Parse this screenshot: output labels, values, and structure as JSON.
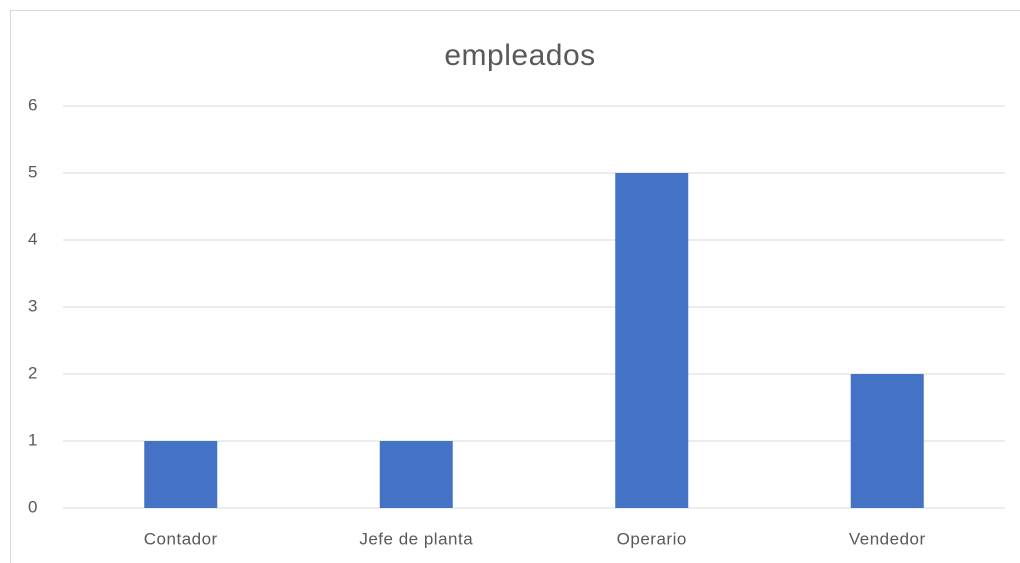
{
  "chart_data": {
    "type": "bar",
    "title": "empleados",
    "categories": [
      "Contador",
      "Jefe de planta",
      "Operario",
      "Vendedor"
    ],
    "values": [
      1,
      1,
      5,
      2
    ],
    "color": "#4472c4",
    "ylim": [
      0,
      6
    ],
    "yticks": [
      0,
      1,
      2,
      3,
      4,
      5,
      6
    ],
    "grid": true
  }
}
